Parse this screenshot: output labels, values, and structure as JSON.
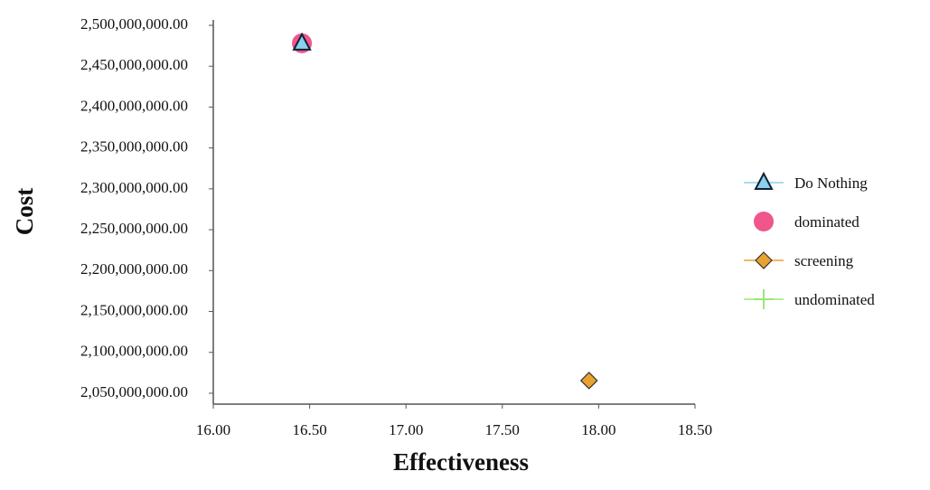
{
  "chart_data": {
    "type": "scatter",
    "xlabel": "Effectiveness",
    "ylabel": "Cost",
    "xlim": [
      16,
      18.5
    ],
    "ylim": [
      2036700000,
      2500000000
    ],
    "xticks": [
      {
        "value": 16,
        "label": "16.00"
      },
      {
        "value": 16.5,
        "label": "16.50"
      },
      {
        "value": 17,
        "label": "17.00"
      },
      {
        "value": 17.5,
        "label": "17.50"
      },
      {
        "value": 18,
        "label": "18.00"
      },
      {
        "value": 18.5,
        "label": "18.50"
      }
    ],
    "yticks": [
      {
        "value": 2050000000,
        "label": "2,050,000,000.00"
      },
      {
        "value": 2100000000,
        "label": "2,100,000,000.00"
      },
      {
        "value": 2150000000,
        "label": "2,150,000,000.00"
      },
      {
        "value": 2200000000,
        "label": "2,200,000,000.00"
      },
      {
        "value": 2250000000,
        "label": "2,250,000,000.00"
      },
      {
        "value": 2300000000,
        "label": "2,300,000,000.00"
      },
      {
        "value": 2350000000,
        "label": "2,350,000,000.00"
      },
      {
        "value": 2400000000,
        "label": "2,400,000,000.00"
      },
      {
        "value": 2450000000,
        "label": "2,450,000,000.00"
      },
      {
        "value": 2500000000,
        "label": "2,500,000,000.00"
      }
    ],
    "legend": "right",
    "series": [
      {
        "name": "Do Nothing",
        "marker": "triangle",
        "color": "#8ccfee",
        "x": [
          16.46
        ],
        "y": [
          2478000000
        ]
      },
      {
        "name": "dominated",
        "marker": "circle",
        "color": "#f0558c",
        "x": [
          16.46
        ],
        "y": [
          2478000000
        ]
      },
      {
        "name": "screening",
        "marker": "diamond",
        "color": "#e8a22e",
        "x": [
          17.95
        ],
        "y": [
          2065500000
        ]
      },
      {
        "name": "undominated",
        "marker": "plus",
        "color": "#98e878",
        "x": [],
        "y": []
      }
    ]
  }
}
